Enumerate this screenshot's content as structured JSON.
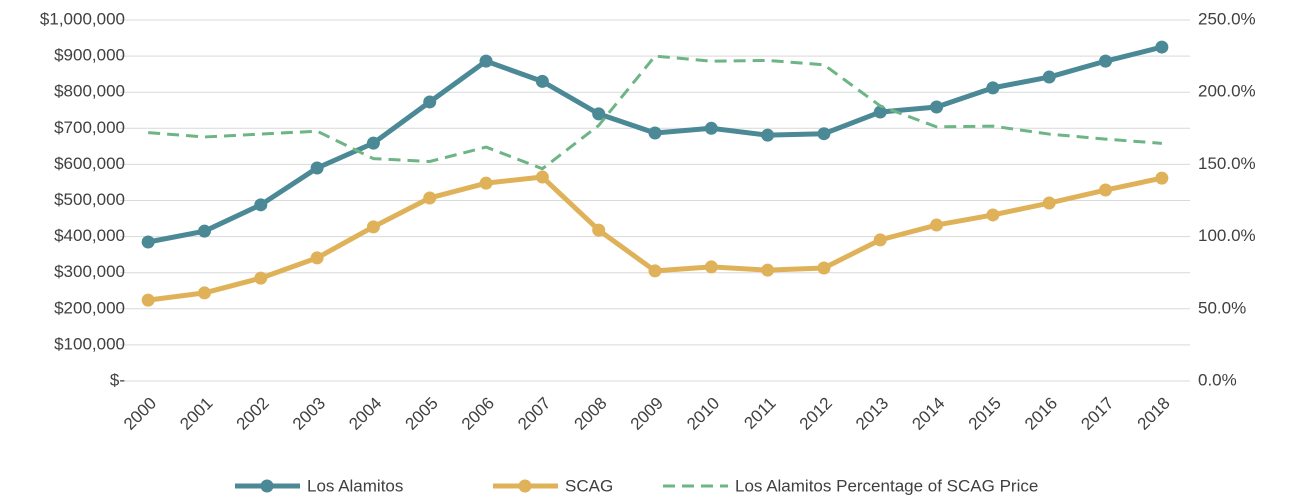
{
  "chart_data": {
    "type": "line",
    "categories": [
      "2000",
      "2001",
      "2002",
      "2003",
      "2004",
      "2005",
      "2006",
      "2007",
      "2008",
      "2009",
      "2010",
      "2011",
      "2012",
      "2013",
      "2014",
      "2015",
      "2016",
      "2017",
      "2018"
    ],
    "series": [
      {
        "name": "Los Alamitos",
        "color": "#4a8995",
        "values": [
          385000,
          415000,
          488000,
          590000,
          659000,
          773000,
          886000,
          830000,
          740000,
          687000,
          700000,
          681000,
          685000,
          745000,
          759000,
          812000,
          842000,
          886000,
          925000
        ]
      },
      {
        "name": "SCAG",
        "color": "#dfb25a",
        "values": [
          224000,
          244000,
          285000,
          341000,
          427000,
          507000,
          548000,
          565000,
          418000,
          305000,
          316000,
          307000,
          313000,
          391000,
          432000,
          460000,
          493000,
          529000,
          562000
        ]
      },
      {
        "name": "Los Alamitos Percentage of SCAG Price",
        "color": "#6db585",
        "axis": "y2",
        "dashed": true,
        "values": [
          172,
          169,
          171,
          173,
          154,
          152,
          162,
          147,
          177,
          225,
          221.5,
          222,
          219,
          190.5,
          176,
          176.5,
          171,
          167.5,
          164.6
        ]
      }
    ],
    "ylim": [
      0,
      1000000
    ],
    "yticks": [
      {
        "value": 0,
        "label": "$-"
      },
      {
        "value": 100000,
        "label": "$100,000"
      },
      {
        "value": 200000,
        "label": "$200,000"
      },
      {
        "value": 300000,
        "label": "$300,000"
      },
      {
        "value": 400000,
        "label": "$400,000"
      },
      {
        "value": 500000,
        "label": "$500,000"
      },
      {
        "value": 600000,
        "label": "$600,000"
      },
      {
        "value": 700000,
        "label": "$700,000"
      },
      {
        "value": 800000,
        "label": "$800,000"
      },
      {
        "value": 900000,
        "label": "$900,000"
      },
      {
        "value": 1000000,
        "label": "$1,000,000"
      }
    ],
    "y2lim": [
      0,
      250
    ],
    "y2ticks": [
      {
        "value": 0,
        "label": "0.0%"
      },
      {
        "value": 50,
        "label": "50.0%"
      },
      {
        "value": 100,
        "label": "100.0%"
      },
      {
        "value": 150,
        "label": "150.0%"
      },
      {
        "value": 200,
        "label": "200.0%"
      },
      {
        "value": 250,
        "label": "250.0%"
      }
    ],
    "grid": true,
    "legend": "bottom"
  }
}
